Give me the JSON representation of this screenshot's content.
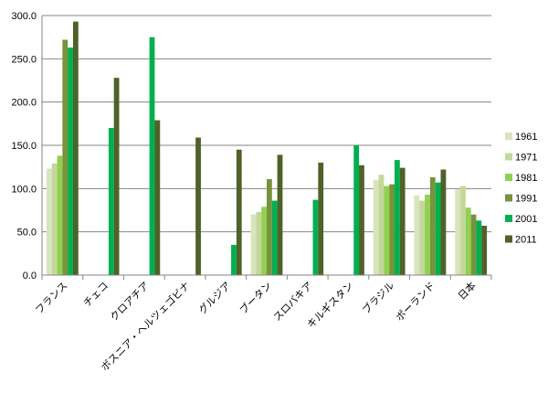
{
  "chart_data": {
    "type": "bar",
    "title": "",
    "xlabel": "",
    "ylabel": "",
    "ylim": [
      0,
      300
    ],
    "yticks": [
      "0.0",
      "50.0",
      "100.0",
      "150.0",
      "200.0",
      "250.0",
      "300.0"
    ],
    "grid": true,
    "legend_position": "right",
    "categories": [
      "フランス",
      "チェコ",
      "クロアチア",
      "ボスニア・ヘルツェゴビナ",
      "グルジア",
      "ブータン",
      "スロバキア",
      "キルギスタン",
      "ブラジル",
      "ポーランド",
      "日本"
    ],
    "series": [
      {
        "name": "1961",
        "color": "#d8e4bc",
        "values": [
          123,
          null,
          null,
          null,
          null,
          70,
          null,
          null,
          110,
          92,
          99
        ]
      },
      {
        "name": "1971",
        "color": "#c4d79b",
        "values": [
          129,
          null,
          null,
          null,
          null,
          73,
          null,
          null,
          116,
          86,
          103
        ]
      },
      {
        "name": "1981",
        "color": "#92d050",
        "values": [
          138,
          null,
          null,
          null,
          null,
          79,
          null,
          null,
          103,
          93,
          78
        ]
      },
      {
        "name": "1991",
        "color": "#77933c",
        "values": [
          272,
          null,
          null,
          null,
          null,
          111,
          null,
          null,
          105,
          113,
          70
        ]
      },
      {
        "name": "2001",
        "color": "#00b050",
        "values": [
          263,
          170,
          275,
          null,
          35,
          86,
          87,
          150,
          133,
          107,
          63
        ]
      },
      {
        "name": "2011",
        "color": "#4f6228",
        "values": [
          293,
          228,
          179,
          159,
          145,
          139,
          130,
          127,
          124,
          122,
          57
        ]
      }
    ]
  }
}
